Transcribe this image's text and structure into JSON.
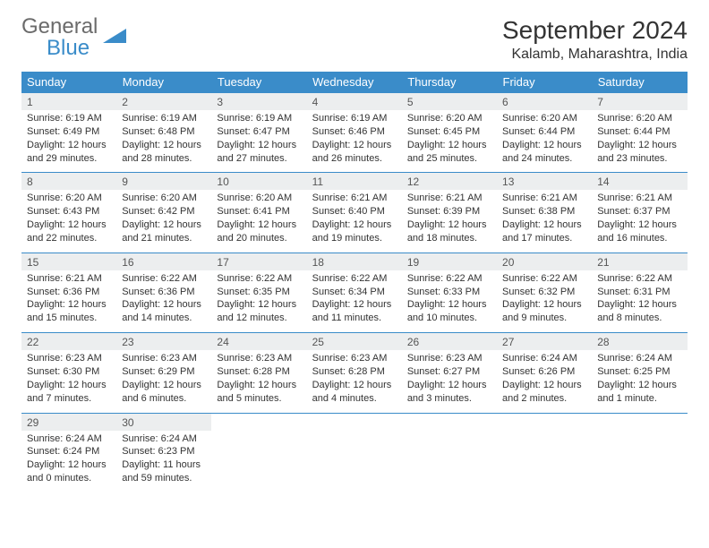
{
  "logo": {
    "text1": "General",
    "text2": "Blue"
  },
  "title": "September 2024",
  "location": "Kalamb, Maharashtra, India",
  "colors": {
    "header_bg": "#3a8cc9",
    "header_text": "#ffffff",
    "daynum_bg": "#eceeef",
    "text": "#333333",
    "logo_gray": "#6b6b6b",
    "logo_blue": "#3a8cc9"
  },
  "fonts": {
    "title_size": 28,
    "location_size": 16,
    "dow_size": 13,
    "cell_size": 11
  },
  "dow": [
    "Sunday",
    "Monday",
    "Tuesday",
    "Wednesday",
    "Thursday",
    "Friday",
    "Saturday"
  ],
  "weeks": [
    [
      {
        "n": "1",
        "sr": "Sunrise: 6:19 AM",
        "ss": "Sunset: 6:49 PM",
        "d1": "Daylight: 12 hours",
        "d2": "and 29 minutes."
      },
      {
        "n": "2",
        "sr": "Sunrise: 6:19 AM",
        "ss": "Sunset: 6:48 PM",
        "d1": "Daylight: 12 hours",
        "d2": "and 28 minutes."
      },
      {
        "n": "3",
        "sr": "Sunrise: 6:19 AM",
        "ss": "Sunset: 6:47 PM",
        "d1": "Daylight: 12 hours",
        "d2": "and 27 minutes."
      },
      {
        "n": "4",
        "sr": "Sunrise: 6:19 AM",
        "ss": "Sunset: 6:46 PM",
        "d1": "Daylight: 12 hours",
        "d2": "and 26 minutes."
      },
      {
        "n": "5",
        "sr": "Sunrise: 6:20 AM",
        "ss": "Sunset: 6:45 PM",
        "d1": "Daylight: 12 hours",
        "d2": "and 25 minutes."
      },
      {
        "n": "6",
        "sr": "Sunrise: 6:20 AM",
        "ss": "Sunset: 6:44 PM",
        "d1": "Daylight: 12 hours",
        "d2": "and 24 minutes."
      },
      {
        "n": "7",
        "sr": "Sunrise: 6:20 AM",
        "ss": "Sunset: 6:44 PM",
        "d1": "Daylight: 12 hours",
        "d2": "and 23 minutes."
      }
    ],
    [
      {
        "n": "8",
        "sr": "Sunrise: 6:20 AM",
        "ss": "Sunset: 6:43 PM",
        "d1": "Daylight: 12 hours",
        "d2": "and 22 minutes."
      },
      {
        "n": "9",
        "sr": "Sunrise: 6:20 AM",
        "ss": "Sunset: 6:42 PM",
        "d1": "Daylight: 12 hours",
        "d2": "and 21 minutes."
      },
      {
        "n": "10",
        "sr": "Sunrise: 6:20 AM",
        "ss": "Sunset: 6:41 PM",
        "d1": "Daylight: 12 hours",
        "d2": "and 20 minutes."
      },
      {
        "n": "11",
        "sr": "Sunrise: 6:21 AM",
        "ss": "Sunset: 6:40 PM",
        "d1": "Daylight: 12 hours",
        "d2": "and 19 minutes."
      },
      {
        "n": "12",
        "sr": "Sunrise: 6:21 AM",
        "ss": "Sunset: 6:39 PM",
        "d1": "Daylight: 12 hours",
        "d2": "and 18 minutes."
      },
      {
        "n": "13",
        "sr": "Sunrise: 6:21 AM",
        "ss": "Sunset: 6:38 PM",
        "d1": "Daylight: 12 hours",
        "d2": "and 17 minutes."
      },
      {
        "n": "14",
        "sr": "Sunrise: 6:21 AM",
        "ss": "Sunset: 6:37 PM",
        "d1": "Daylight: 12 hours",
        "d2": "and 16 minutes."
      }
    ],
    [
      {
        "n": "15",
        "sr": "Sunrise: 6:21 AM",
        "ss": "Sunset: 6:36 PM",
        "d1": "Daylight: 12 hours",
        "d2": "and 15 minutes."
      },
      {
        "n": "16",
        "sr": "Sunrise: 6:22 AM",
        "ss": "Sunset: 6:36 PM",
        "d1": "Daylight: 12 hours",
        "d2": "and 14 minutes."
      },
      {
        "n": "17",
        "sr": "Sunrise: 6:22 AM",
        "ss": "Sunset: 6:35 PM",
        "d1": "Daylight: 12 hours",
        "d2": "and 12 minutes."
      },
      {
        "n": "18",
        "sr": "Sunrise: 6:22 AM",
        "ss": "Sunset: 6:34 PM",
        "d1": "Daylight: 12 hours",
        "d2": "and 11 minutes."
      },
      {
        "n": "19",
        "sr": "Sunrise: 6:22 AM",
        "ss": "Sunset: 6:33 PM",
        "d1": "Daylight: 12 hours",
        "d2": "and 10 minutes."
      },
      {
        "n": "20",
        "sr": "Sunrise: 6:22 AM",
        "ss": "Sunset: 6:32 PM",
        "d1": "Daylight: 12 hours",
        "d2": "and 9 minutes."
      },
      {
        "n": "21",
        "sr": "Sunrise: 6:22 AM",
        "ss": "Sunset: 6:31 PM",
        "d1": "Daylight: 12 hours",
        "d2": "and 8 minutes."
      }
    ],
    [
      {
        "n": "22",
        "sr": "Sunrise: 6:23 AM",
        "ss": "Sunset: 6:30 PM",
        "d1": "Daylight: 12 hours",
        "d2": "and 7 minutes."
      },
      {
        "n": "23",
        "sr": "Sunrise: 6:23 AM",
        "ss": "Sunset: 6:29 PM",
        "d1": "Daylight: 12 hours",
        "d2": "and 6 minutes."
      },
      {
        "n": "24",
        "sr": "Sunrise: 6:23 AM",
        "ss": "Sunset: 6:28 PM",
        "d1": "Daylight: 12 hours",
        "d2": "and 5 minutes."
      },
      {
        "n": "25",
        "sr": "Sunrise: 6:23 AM",
        "ss": "Sunset: 6:28 PM",
        "d1": "Daylight: 12 hours",
        "d2": "and 4 minutes."
      },
      {
        "n": "26",
        "sr": "Sunrise: 6:23 AM",
        "ss": "Sunset: 6:27 PM",
        "d1": "Daylight: 12 hours",
        "d2": "and 3 minutes."
      },
      {
        "n": "27",
        "sr": "Sunrise: 6:24 AM",
        "ss": "Sunset: 6:26 PM",
        "d1": "Daylight: 12 hours",
        "d2": "and 2 minutes."
      },
      {
        "n": "28",
        "sr": "Sunrise: 6:24 AM",
        "ss": "Sunset: 6:25 PM",
        "d1": "Daylight: 12 hours",
        "d2": "and 1 minute."
      }
    ],
    [
      {
        "n": "29",
        "sr": "Sunrise: 6:24 AM",
        "ss": "Sunset: 6:24 PM",
        "d1": "Daylight: 12 hours",
        "d2": "and 0 minutes."
      },
      {
        "n": "30",
        "sr": "Sunrise: 6:24 AM",
        "ss": "Sunset: 6:23 PM",
        "d1": "Daylight: 11 hours",
        "d2": "and 59 minutes."
      },
      null,
      null,
      null,
      null,
      null
    ]
  ]
}
